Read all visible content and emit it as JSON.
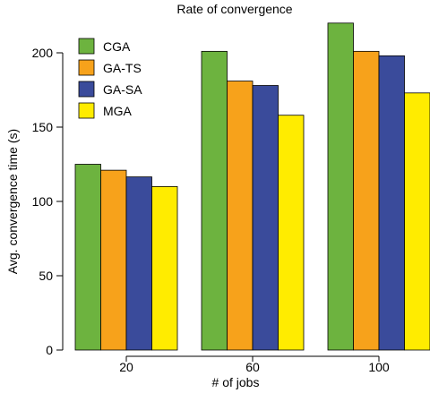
{
  "chart_data": {
    "type": "bar",
    "title": "Rate of convergence",
    "xlabel": "# of jobs",
    "ylabel": "Avg. convergence time (s)",
    "categories": [
      "20",
      "60",
      "100"
    ],
    "ylim": [
      0,
      220
    ],
    "yticks": [
      0,
      50,
      100,
      150,
      200
    ],
    "legend_position": "top-left",
    "grid": false,
    "series": [
      {
        "name": "CGA",
        "color": "#6db33f",
        "values": [
          125,
          201,
          220
        ]
      },
      {
        "name": "GA-TS",
        "color": "#f7a21b",
        "values": [
          121,
          181,
          201
        ]
      },
      {
        "name": "GA-SA",
        "color": "#3a4b9b",
        "values": [
          116.5,
          178,
          198
        ]
      },
      {
        "name": "MGA",
        "color": "#ffec00",
        "values": [
          110,
          158,
          173
        ]
      }
    ]
  }
}
